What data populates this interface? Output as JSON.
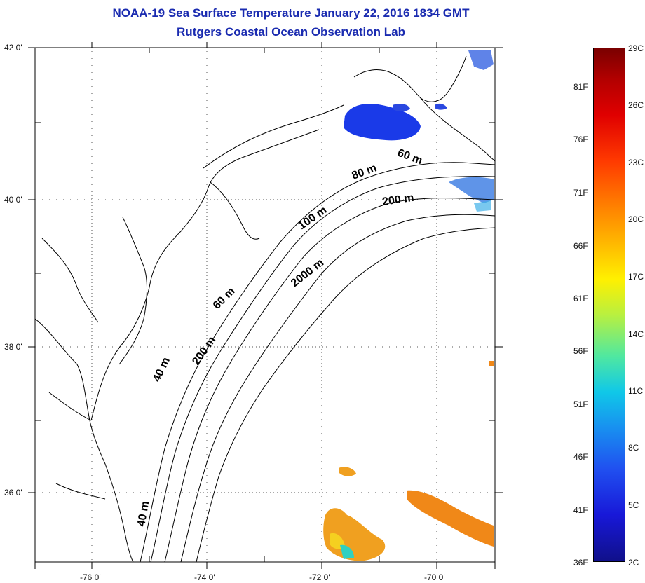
{
  "title": {
    "line1": "NOAA-19 Sea Surface Temperature January 22, 2016 1834 GMT",
    "line2": "Rutgers Coastal Ocean Observation Lab"
  },
  "axes": {
    "lat_labels": [
      "42 0'",
      "40 0'",
      "38 0'",
      "36 0'"
    ],
    "lon_labels": [
      "-76 0'",
      "-74 0'",
      "-72 0'",
      "-70 0'"
    ]
  },
  "contour_labels": [
    "60 m",
    "80 m",
    "200 m",
    "100 m",
    "2000 m",
    "60 m",
    "200 m",
    "40 m",
    "40 m"
  ],
  "colorbar": {
    "fahrenheit": [
      "81F",
      "76F",
      "71F",
      "66F",
      "61F",
      "56F",
      "51F",
      "46F",
      "41F",
      "36F"
    ],
    "celsius": [
      "29C",
      "26C",
      "23C",
      "20C",
      "17C",
      "14C",
      "11C",
      "8C",
      "5C",
      "2C"
    ]
  },
  "colors": {
    "title": "#1a2bb0",
    "cold_patch": "#1a3ae8",
    "warm_patch": "#f0a020"
  }
}
